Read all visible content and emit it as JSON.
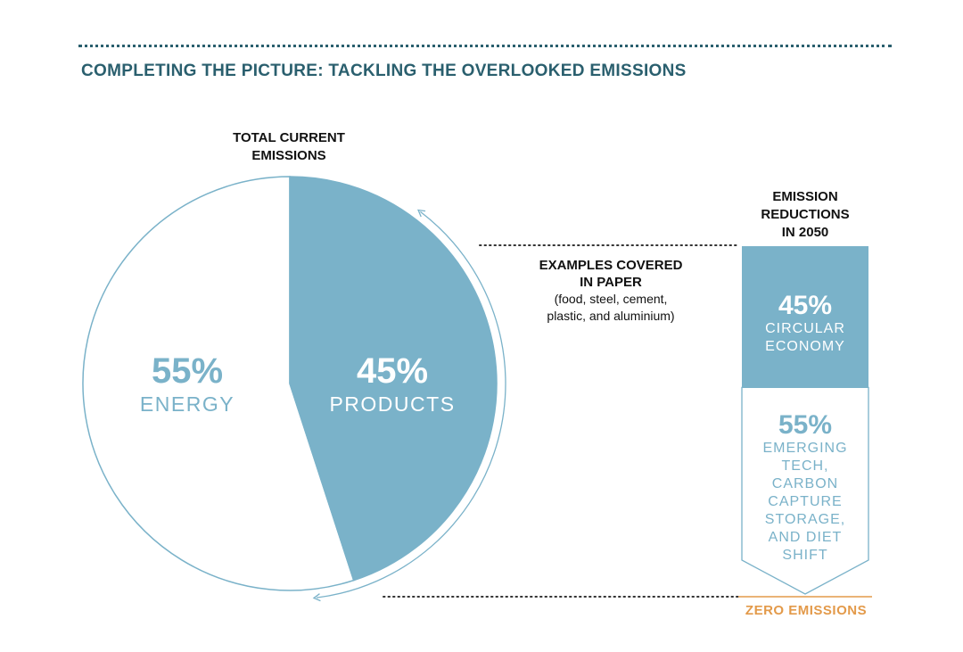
{
  "header": {
    "title": "COMPLETING THE PICTURE: TACKLING THE OVERLOOKED EMISSIONS"
  },
  "colors": {
    "accent": "#7ab2c9",
    "header": "#2a5f6e",
    "zero_line": "#e39a4a"
  },
  "chart_data": [
    {
      "type": "pie",
      "title": "TOTAL CURRENT\nEMISSIONS",
      "slices": [
        {
          "label": "ENERGY",
          "value_label": "55%",
          "value": 55
        },
        {
          "label": "PRODUCTS",
          "value_label": "45%",
          "value": 45
        }
      ]
    },
    {
      "type": "bar",
      "title": "EMISSION\nREDUCTIONS\nIN 2050",
      "segments": [
        {
          "label": "CIRCULAR\nECONOMY",
          "value_label": "45%",
          "value": 45
        },
        {
          "label": "EMERGING\nTECH,\nCARBON\nCAPTURE\nSTORAGE,\nAND DIET\nSHIFT",
          "value_label": "55%",
          "value": 55
        }
      ],
      "baseline_label": "ZERO EMISSIONS"
    }
  ],
  "annotation": {
    "heading": "EXAMPLES COVERED\nIN PAPER",
    "detail": "(food, steel, cement,\nplastic, and aluminium)"
  }
}
